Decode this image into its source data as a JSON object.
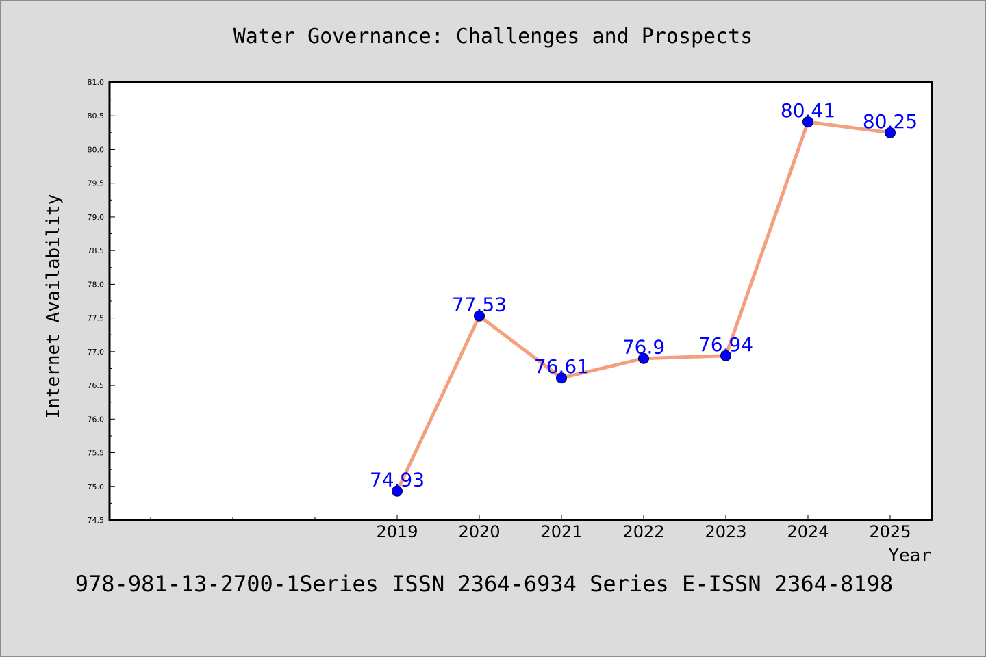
{
  "chart_data": {
    "type": "line",
    "title": "Water Governance: Challenges and Prospects",
    "xlabel": "Year",
    "ylabel": "Internet Availability",
    "footer": "978-981-13-2700-1Series ISSN 2364-6934 Series E-ISSN 2364-8198",
    "categories": [
      "2019",
      "2020",
      "2021",
      "2022",
      "2023",
      "2024",
      "2025"
    ],
    "series": [
      {
        "values": [
          74.93,
          77.53,
          76.61,
          76.9,
          76.94,
          80.41,
          80.25
        ],
        "data_labels": [
          "74.93",
          "77.53",
          "76.61",
          "76.9",
          "76.94",
          "80.41",
          "80.25"
        ]
      }
    ],
    "ylim": [
      74.5,
      81.0
    ],
    "y_ticks": [
      "74.5",
      "75.0",
      "75.5",
      "76.0",
      "76.5",
      "77.0",
      "77.5",
      "78.0",
      "78.5",
      "79.0",
      "79.5",
      "80.0",
      "80.5",
      "81.0"
    ],
    "line_color": "#f4a07e",
    "marker_color": "#0000ff",
    "label_color": "#0000ff",
    "grid": false,
    "legend": "none"
  }
}
